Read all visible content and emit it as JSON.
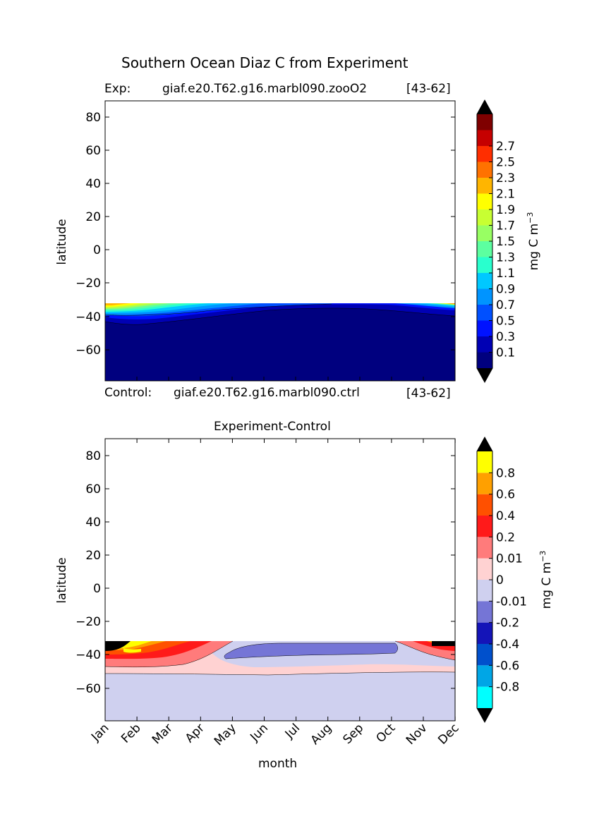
{
  "figure": {
    "title": "Southern Ocean Diaz C from Experiment"
  },
  "top": {
    "left_label": "Exp:",
    "case_name": "giaf.e20.T62.g16.marbl090.zooO2",
    "range": "[43-62]",
    "ylabel": "latitude",
    "yticks": [
      "80",
      "60",
      "40",
      "20",
      "0",
      "−20",
      "−40",
      "−60"
    ],
    "colorbar": {
      "label": "mg C m",
      "label_sup": "−3",
      "levels": [
        "0.1",
        "0.3",
        "0.5",
        "0.7",
        "0.9",
        "1.1",
        "1.3",
        "1.5",
        "1.7",
        "1.9",
        "2.1",
        "2.3",
        "2.5",
        "2.7"
      ],
      "colors": [
        "#00007f",
        "#0000b4",
        "#0012ff",
        "#0050ff",
        "#0094ff",
        "#00c8ff",
        "#29ffce",
        "#5cffa0",
        "#98ff63",
        "#c8ff32",
        "#ffff00",
        "#ffb500",
        "#ff7200",
        "#ff2e00",
        "#c60000",
        "#7f0000"
      ],
      "under_color": "#000000",
      "over_color": "#000000"
    }
  },
  "control": {
    "left_label": "Control:",
    "case_name": "giaf.e20.T62.g16.marbl090.ctrl",
    "range": "[43-62]"
  },
  "bottom": {
    "title": "Experiment-Control",
    "ylabel": "latitude",
    "xlabel": "month",
    "yticks": [
      "80",
      "60",
      "40",
      "20",
      "0",
      "−20",
      "−40",
      "−60"
    ],
    "months": [
      "Jan",
      "Feb",
      "Mar",
      "Apr",
      "May",
      "Jun",
      "Jul",
      "Aug",
      "Sep",
      "Oct",
      "Nov",
      "Dec"
    ],
    "colorbar": {
      "label": "mg C m",
      "label_sup": "−3",
      "levels": [
        "-0.8",
        "-0.6",
        "-0.4",
        "-0.2",
        "-0.01",
        "0",
        "0.01",
        "0.2",
        "0.4",
        "0.6",
        "0.8"
      ],
      "colors": [
        "#00ffff",
        "#00a6e6",
        "#0050cc",
        "#1414b8",
        "#7575d6",
        "#cfd0ef",
        "#ffd2d2",
        "#ff7b7b",
        "#ff1a1a",
        "#ff5000",
        "#ffa000",
        "#ffff00"
      ],
      "under_color": "#000000",
      "over_color": "#000000"
    }
  },
  "chart_data": [
    {
      "type": "heatmap",
      "title": "Southern Ocean Diaz C from Experiment",
      "subtitle": "giaf.e20.T62.g16.marbl090.zooO2 [43-62]",
      "ylabel": "latitude",
      "ylim": [
        -79,
        90
      ],
      "yticks": [
        80,
        60,
        40,
        20,
        0,
        -20,
        -40,
        -60
      ],
      "x_range_months": [
        "Jan",
        "Dec"
      ],
      "colorbar_label": "mg C m-3",
      "levels": [
        0.1,
        0.3,
        0.5,
        0.7,
        0.9,
        1.1,
        1.3,
        1.5,
        1.7,
        1.9,
        2.1,
        2.3,
        2.5,
        2.7
      ],
      "regions": [
        {
          "description": "north of ~-32 latitude",
          "value": "no data"
        },
        {
          "latitude": [
            -79,
            -40
          ],
          "months": "Jan-Dec",
          "value_range": "<0.1"
        },
        {
          "latitude": [
            -40,
            -32
          ],
          "months": "May-Oct",
          "value_range": "0.1-0.3"
        },
        {
          "latitude": [
            -40,
            -32
          ],
          "months": "Jan-Feb",
          "value_range": "0.3-2.3"
        },
        {
          "latitude": [
            -36,
            -32
          ],
          "months": "Dec",
          "value_range": "0.3-2.1"
        }
      ]
    },
    {
      "type": "heatmap",
      "title": "Experiment-Control",
      "xlabel": "month",
      "ylabel": "latitude",
      "ylim": [
        -79,
        90
      ],
      "yticks": [
        80,
        60,
        40,
        20,
        0,
        -20,
        -40,
        -60
      ],
      "categories": [
        "Jan",
        "Feb",
        "Mar",
        "Apr",
        "May",
        "Jun",
        "Jul",
        "Aug",
        "Sep",
        "Oct",
        "Nov",
        "Dec"
      ],
      "colorbar_label": "mg C m-3",
      "levels": [
        -0.8,
        -0.6,
        -0.4,
        -0.2,
        -0.01,
        0,
        0.01,
        0.2,
        0.4,
        0.6,
        0.8
      ],
      "regions": [
        {
          "description": "north of ~-32 latitude",
          "value": "no data"
        },
        {
          "latitude": [
            -79,
            -51
          ],
          "months": "Jan-Dec",
          "value_range": "-0.01-0"
        },
        {
          "latitude": [
            -51,
            -47
          ],
          "months": "Jan-Dec",
          "value_range": "0-0.01"
        },
        {
          "latitude": [
            -45,
            -33
          ],
          "months": "May-Oct",
          "value_range": "-0.2--0.01"
        },
        {
          "latitude": [
            -40,
            -32
          ],
          "months": "Jan-Feb",
          "value_range": ">0.8"
        },
        {
          "latitude": [
            -34,
            -32
          ],
          "months": "Dec",
          "value_range": ">0.8"
        }
      ]
    }
  ]
}
